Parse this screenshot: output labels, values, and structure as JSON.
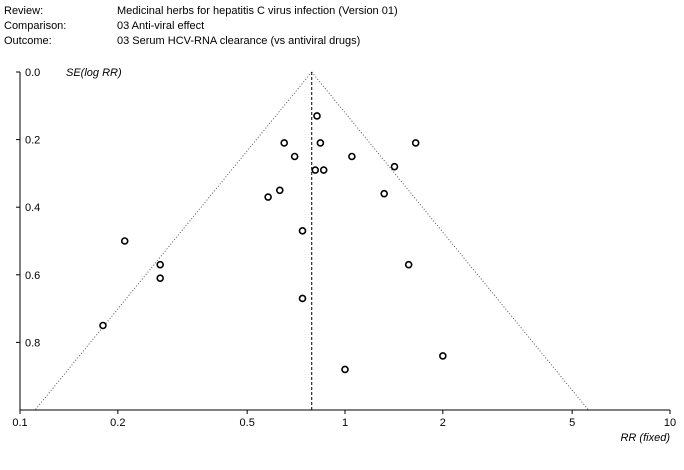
{
  "header": {
    "review_label": "Review:",
    "review_value": "Medicinal herbs for hepatitis C virus infection (Version 01)",
    "comparison_label": "Comparison:",
    "comparison_value": "03 Anti-viral effect",
    "outcome_label": "Outcome:",
    "outcome_value": "03 Serum HCV-RNA clearance (vs antiviral drugs)"
  },
  "chart_data": {
    "type": "scatter",
    "subtype": "funnel plot",
    "xlabel": "RR (fixed)",
    "ylabel": "SE(log RR)",
    "xscale": "log",
    "xlim": [
      0.1,
      10
    ],
    "ylim": [
      0,
      1.0
    ],
    "y_inverted": true,
    "x_ticks": [
      0.1,
      0.2,
      0.5,
      1,
      2,
      5,
      10
    ],
    "x_tick_labels": [
      "0.1",
      "0.2",
      "0.5",
      "1",
      "2",
      "5",
      "10"
    ],
    "y_ticks": [
      0.0,
      0.2,
      0.4,
      0.6,
      0.8
    ],
    "y_tick_labels": [
      "0.0",
      "0.2",
      "0.4",
      "0.6",
      "0.8"
    ],
    "pooled_estimate": 0.79,
    "funnel_limits": true,
    "grid": false,
    "points": [
      {
        "x": 0.82,
        "y": 0.13
      },
      {
        "x": 0.65,
        "y": 0.21
      },
      {
        "x": 0.84,
        "y": 0.21
      },
      {
        "x": 1.65,
        "y": 0.21
      },
      {
        "x": 0.7,
        "y": 0.25
      },
      {
        "x": 1.05,
        "y": 0.25
      },
      {
        "x": 1.42,
        "y": 0.28
      },
      {
        "x": 0.81,
        "y": 0.29
      },
      {
        "x": 0.86,
        "y": 0.29
      },
      {
        "x": 0.63,
        "y": 0.35
      },
      {
        "x": 1.32,
        "y": 0.36
      },
      {
        "x": 0.58,
        "y": 0.37
      },
      {
        "x": 0.74,
        "y": 0.47
      },
      {
        "x": 0.21,
        "y": 0.5
      },
      {
        "x": 0.27,
        "y": 0.57
      },
      {
        "x": 1.57,
        "y": 0.57
      },
      {
        "x": 0.27,
        "y": 0.61
      },
      {
        "x": 0.74,
        "y": 0.67
      },
      {
        "x": 0.18,
        "y": 0.75
      },
      {
        "x": 2.0,
        "y": 0.84
      },
      {
        "x": 1.0,
        "y": 0.88
      }
    ]
  }
}
